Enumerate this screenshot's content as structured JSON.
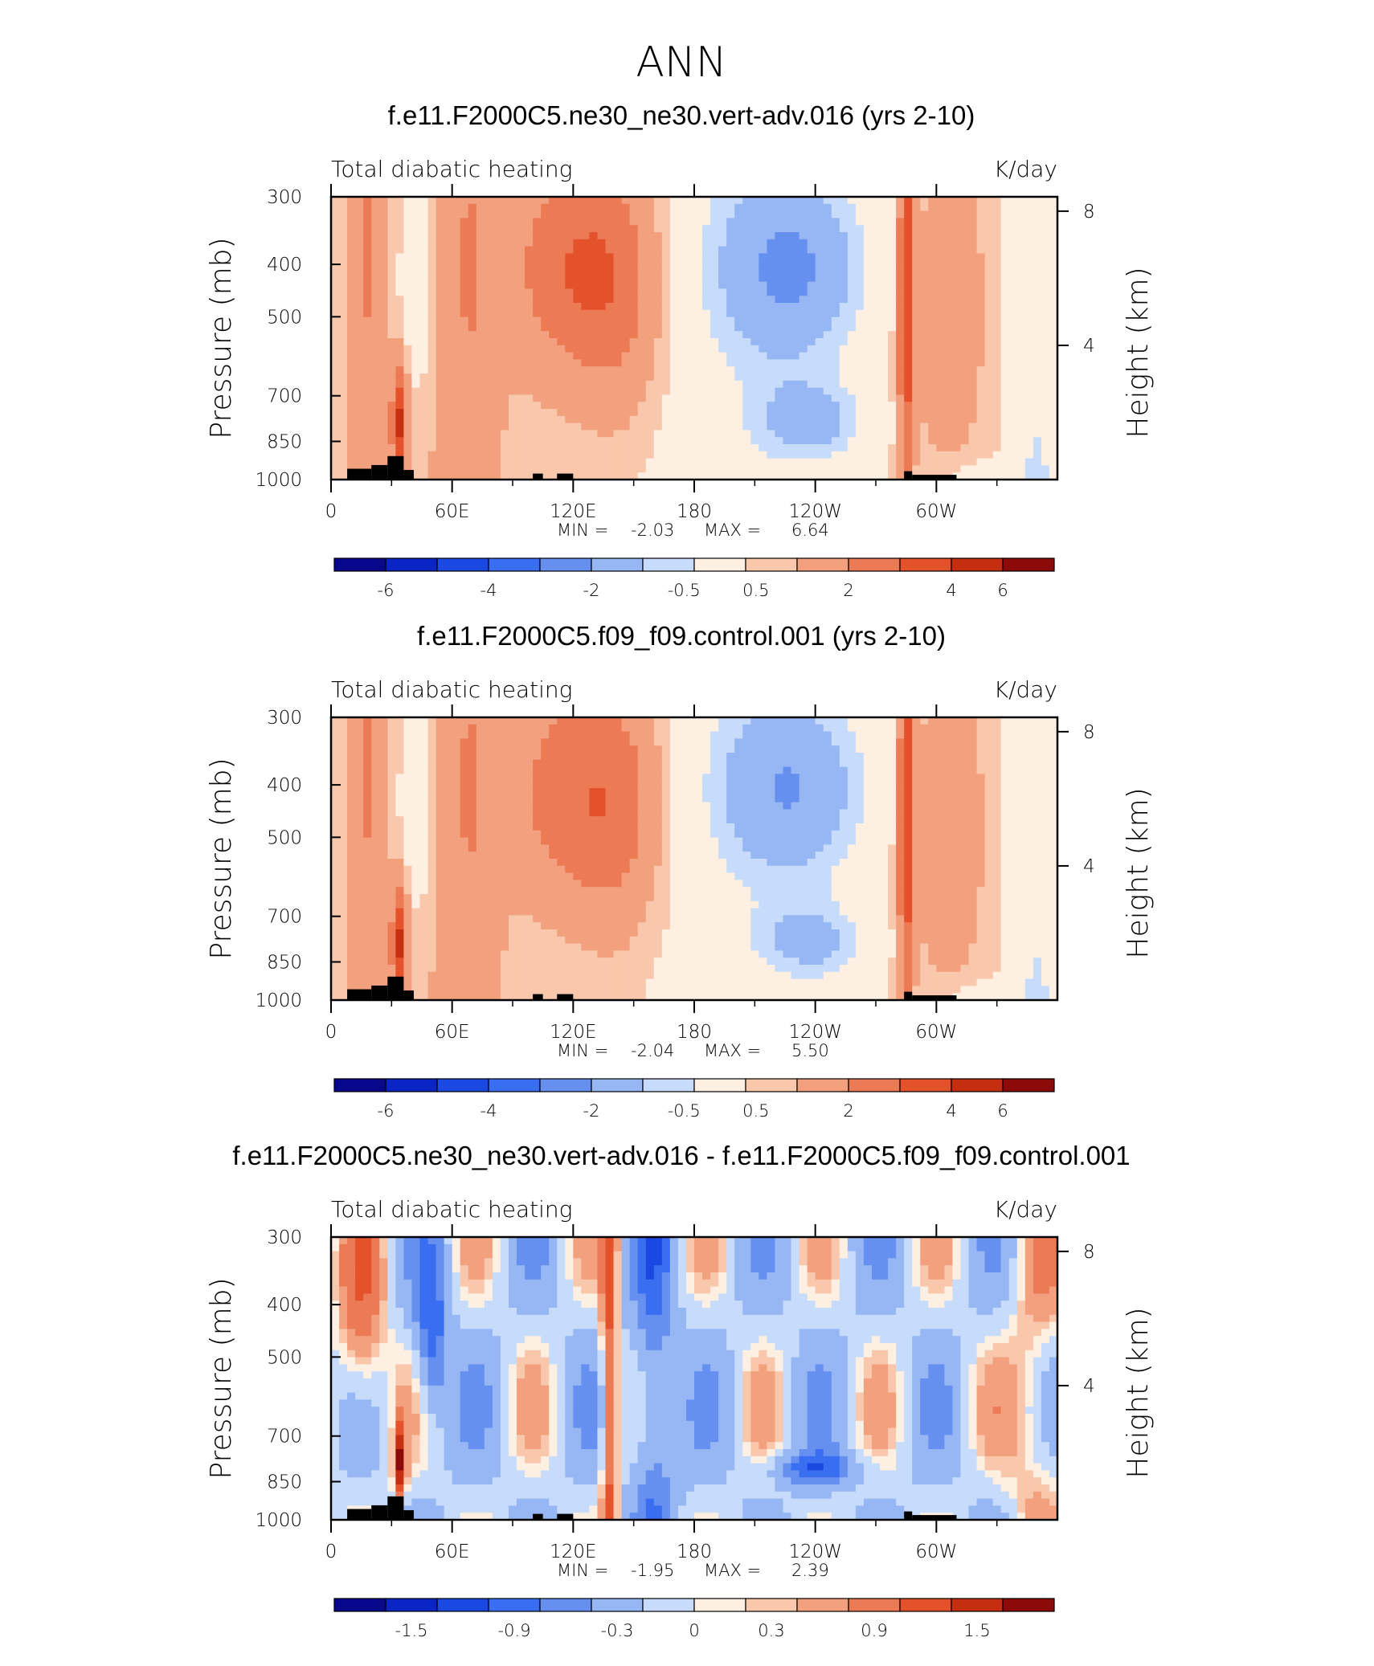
{
  "title": "ANN",
  "colors": {
    "blue_to_red": [
      "#08088c",
      "#0b24c4",
      "#1a48e0",
      "#3a6ef0",
      "#6690f0",
      "#96b6f4",
      "#c6dcfa",
      "#fdf0e2",
      "#f8c7ac",
      "#f2a07e",
      "#ec7a54",
      "#e4522c",
      "#c62e12",
      "#8c0a0a"
    ],
    "land": "#000000"
  },
  "chart_data": [
    {
      "type": "heatmap",
      "title": "f.e11.F2000C5.ne30_ne30.vert-adv.016 (yrs 2-10)",
      "left_label": "Total diabatic heating",
      "right_label": "K/day",
      "ylabel": "Pressure (mb)",
      "ylabel_right": "Height (km)",
      "yticks": [
        "300",
        "400",
        "500",
        "700",
        "850",
        "1000"
      ],
      "yticks_right": [
        "8",
        "4"
      ],
      "xticks": [
        "0",
        "60E",
        "120E",
        "180",
        "120W",
        "60W"
      ],
      "xlim": [
        0,
        360
      ],
      "ylim": [
        1000,
        300
      ],
      "min_label": "MIN =",
      "min_value": "-2.03",
      "max_label": "MAX =",
      "max_value": "6.64",
      "colorbar_labels": [
        "-6",
        "-4",
        "-2",
        "-0.5",
        "0.5",
        "2",
        "4",
        "6"
      ]
    },
    {
      "type": "heatmap",
      "title": "f.e11.F2000C5.f09_f09.control.001 (yrs 2-10)",
      "left_label": "Total diabatic heating",
      "right_label": "K/day",
      "ylabel": "Pressure (mb)",
      "ylabel_right": "Height (km)",
      "yticks": [
        "300",
        "400",
        "500",
        "700",
        "850",
        "1000"
      ],
      "yticks_right": [
        "8",
        "4"
      ],
      "xticks": [
        "0",
        "60E",
        "120E",
        "180",
        "120W",
        "60W"
      ],
      "xlim": [
        0,
        360
      ],
      "ylim": [
        1000,
        300
      ],
      "min_label": "MIN =",
      "min_value": "-2.04",
      "max_label": "MAX =",
      "max_value": "5.50",
      "colorbar_labels": [
        "-6",
        "-4",
        "-2",
        "-0.5",
        "0.5",
        "2",
        "4",
        "6"
      ]
    },
    {
      "type": "heatmap",
      "title": "f.e11.F2000C5.ne30_ne30.vert-adv.016 - f.e11.F2000C5.f09_f09.control.001",
      "left_label": "Total diabatic heating",
      "right_label": "K/day",
      "ylabel": "Pressure (mb)",
      "ylabel_right": "Height (km)",
      "yticks": [
        "300",
        "400",
        "500",
        "700",
        "850",
        "1000"
      ],
      "yticks_right": [
        "8",
        "4"
      ],
      "xticks": [
        "0",
        "60E",
        "120E",
        "180",
        "120W",
        "60W"
      ],
      "xlim": [
        0,
        360
      ],
      "ylim": [
        1000,
        300
      ],
      "min_label": "MIN =",
      "min_value": "-1.95",
      "max_label": "MAX =",
      "max_value": "2.39",
      "colorbar_labels": [
        "-1.5",
        "-0.9",
        "-0.3",
        "0",
        "0.3",
        "0.9",
        "1.5"
      ]
    }
  ]
}
